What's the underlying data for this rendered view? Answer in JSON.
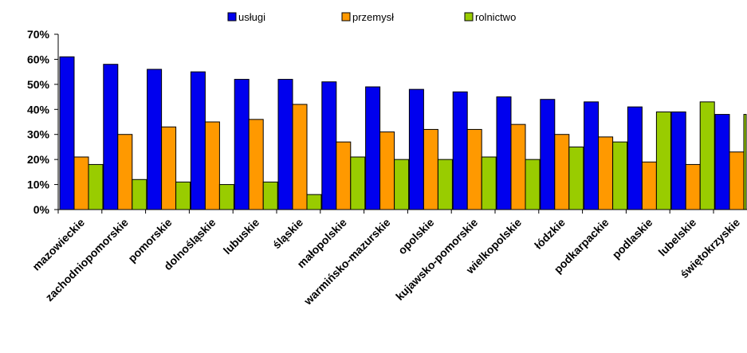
{
  "chart_data": {
    "type": "bar",
    "categories": [
      "mazowieckie",
      "zachodniopomorskie",
      "pomorskie",
      "dolnośląskie",
      "lubuskie",
      "śląskie",
      "małopolskie",
      "warmińsko-mazurskie",
      "opolskie",
      "kujawsko-pomorskie",
      "wielkopolskie",
      "łódzkie",
      "podkarpackie",
      "podlaskie",
      "lubelskie",
      "świętokrzyskie"
    ],
    "series": [
      {
        "name": "usługi",
        "color": "#0000ee",
        "values": [
          61,
          58,
          56,
          55,
          52,
          52,
          51,
          49,
          48,
          47,
          45,
          44,
          43,
          41,
          39,
          38
        ]
      },
      {
        "name": "przemysł",
        "color": "#ff9900",
        "values": [
          21,
          30,
          33,
          35,
          36,
          42,
          27,
          31,
          32,
          32,
          34,
          30,
          29,
          19,
          18,
          23
        ]
      },
      {
        "name": "rolnictwo",
        "color": "#99cc00",
        "values": [
          18,
          12,
          11,
          10,
          11,
          6,
          21,
          20,
          20,
          21,
          20,
          25,
          27,
          39,
          43,
          38
        ]
      }
    ],
    "ylim": [
      0,
      70
    ],
    "yticks": [
      "0%",
      "10%",
      "20%",
      "30%",
      "40%",
      "50%",
      "60%",
      "70%"
    ],
    "grid": false,
    "legend_position": "top"
  }
}
